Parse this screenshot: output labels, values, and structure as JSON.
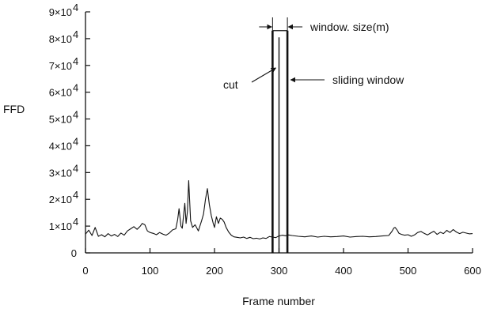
{
  "chart_data": {
    "type": "line",
    "xlabel": "Frame number",
    "ylabel": "FFD",
    "xlim": [
      0,
      600
    ],
    "ylim": [
      0,
      90000
    ],
    "x_ticks": [
      0,
      100,
      200,
      300,
      400,
      500,
      600
    ],
    "x_tick_labels": [
      "0",
      "100",
      "200",
      "300",
      "400",
      "500",
      "600"
    ],
    "y_ticks": [
      0,
      10000,
      20000,
      30000,
      40000,
      50000,
      60000,
      70000,
      80000,
      90000
    ],
    "y_tick_labels": [
      {
        "base": "0",
        "exp": ""
      },
      {
        "base": "1×10",
        "exp": "4"
      },
      {
        "base": "2×10",
        "exp": "4"
      },
      {
        "base": "3×10",
        "exp": "4"
      },
      {
        "base": "4×10",
        "exp": "4"
      },
      {
        "base": "5×10",
        "exp": "4"
      },
      {
        "base": "6×10",
        "exp": "4"
      },
      {
        "base": "7×10",
        "exp": "4"
      },
      {
        "base": "8×10",
        "exp": "4"
      },
      {
        "base": "9×10",
        "exp": "4"
      }
    ],
    "grid": false,
    "series": [
      {
        "x": [
          0,
          5,
          10,
          15,
          20,
          25,
          30,
          35,
          40,
          45,
          50,
          55,
          60,
          65,
          70,
          75,
          80,
          85,
          88,
          92,
          96,
          100,
          105,
          110,
          115,
          120,
          125,
          130,
          135,
          140,
          143,
          145,
          148,
          150,
          152,
          154,
          156,
          158,
          160,
          163,
          166,
          170,
          175,
          180,
          183,
          186,
          189,
          192,
          195,
          198,
          200,
          203,
          206,
          209,
          212,
          215,
          218,
          222,
          226,
          230,
          235,
          240,
          245,
          250,
          255,
          260,
          265,
          270,
          275,
          280,
          285,
          290,
          295,
          298,
          300,
          305,
          310,
          315,
          320,
          330,
          340,
          350,
          360,
          370,
          380,
          390,
          400,
          410,
          420,
          430,
          440,
          450,
          460,
          470,
          475,
          478,
          480,
          483,
          486,
          490,
          495,
          500,
          505,
          510,
          515,
          520,
          525,
          530,
          535,
          540,
          545,
          550,
          555,
          560,
          565,
          570,
          575,
          580,
          585,
          590,
          595,
          600
        ],
        "y": [
          7000,
          8500,
          6500,
          9500,
          6200,
          6800,
          6000,
          7200,
          6300,
          6900,
          6100,
          7400,
          6600,
          8200,
          9000,
          9800,
          8800,
          10000,
          11000,
          10500,
          8200,
          7600,
          7300,
          6800,
          7600,
          7000,
          6600,
          7400,
          8600,
          9000,
          12500,
          16500,
          10000,
          9200,
          14000,
          18500,
          11000,
          15500,
          27000,
          12000,
          9500,
          10500,
          8200,
          12000,
          14500,
          20000,
          24000,
          18000,
          14000,
          11000,
          9500,
          13500,
          11000,
          13000,
          12500,
          11500,
          9500,
          7800,
          6600,
          6000,
          5800,
          5600,
          5900,
          5400,
          5800,
          5300,
          5500,
          5200,
          5600,
          5400,
          6100,
          5900,
          5700,
          6100,
          6300,
          6600,
          6400,
          6700,
          6500,
          6200,
          6000,
          6300,
          5900,
          6200,
          6000,
          6100,
          6300,
          5900,
          6100,
          6200,
          6000,
          6100,
          6300,
          6500,
          8000,
          9300,
          9500,
          8600,
          7300,
          6900,
          6600,
          6800,
          6200,
          6700,
          7600,
          8000,
          7300,
          6700,
          7400,
          8100,
          6900,
          7700,
          7200,
          8400,
          7600,
          8700,
          7800,
          7200,
          7700,
          7400,
          7100,
          7200
        ]
      }
    ],
    "annotations": {
      "window_size_label": "window. size(m)",
      "sliding_window_label": "sliding window",
      "cut_label": "cut"
    },
    "sliding_window": {
      "x_start": 290,
      "x_end": 313,
      "top": 83000
    },
    "cut_line": {
      "x": 300,
      "top": 80500
    }
  }
}
